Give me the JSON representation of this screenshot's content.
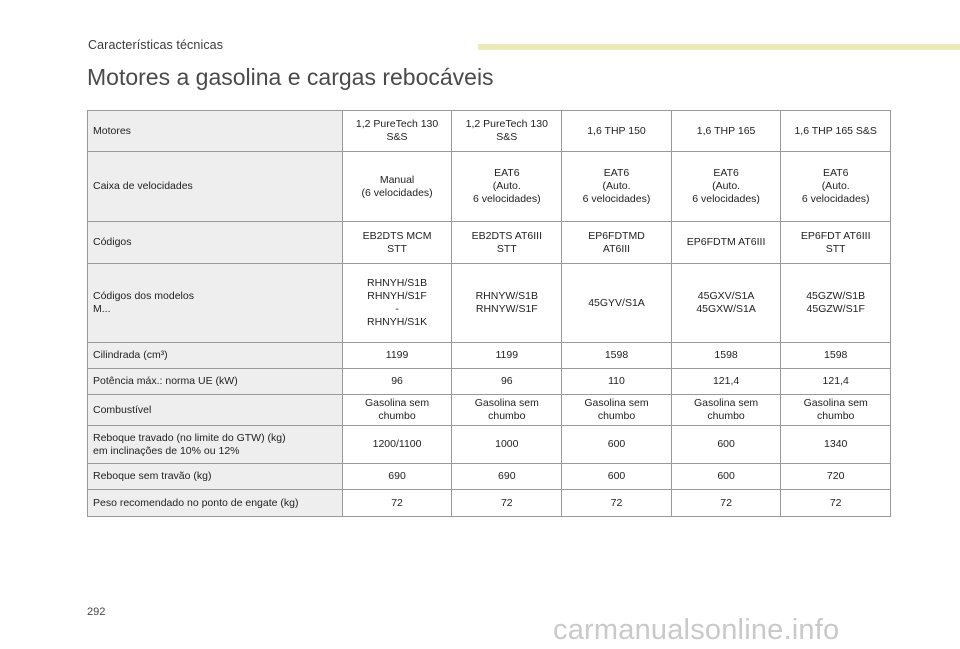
{
  "header": {
    "section_title": "Características técnicas",
    "accent_color": "#ecebb8"
  },
  "page_title": "Motores a gasolina e cargas rebocáveis",
  "table": {
    "rows": [
      {
        "label": "Motores",
        "values": [
          "1,2 PureTech 130\nS&S",
          "1,2 PureTech 130\nS&S",
          "1,6 THP 150",
          "1,6 THP 165",
          "1,6 THP 165 S&S"
        ]
      },
      {
        "label": "Caixa de velocidades",
        "values": [
          "Manual\n(6 velocidades)",
          "EAT6\n(Auto.\n6 velocidades)",
          "EAT6\n(Auto.\n6 velocidades)",
          "EAT6\n(Auto.\n6 velocidades)",
          "EAT6\n(Auto.\n6 velocidades)"
        ]
      },
      {
        "label": "Códigos",
        "values": [
          "EB2DTS MCM\nSTT",
          "EB2DTS AT6III\nSTT",
          "EP6FDTMD\nAT6III",
          "EP6FDTM AT6III",
          "EP6FDT AT6III\nSTT"
        ]
      },
      {
        "label": "Códigos dos modelos\nM...",
        "values": [
          "RHNYH/S1B\nRHNYH/S1F\n-\nRHNYH/S1K",
          "RHNYW/S1B\nRHNYW/S1F",
          "45GYV/S1A",
          "45GXV/S1A\n45GXW/S1A",
          "45GZW/S1B\n45GZW/S1F"
        ]
      },
      {
        "label": "Cilindrada (cm³)",
        "values": [
          "1199",
          "1199",
          "1598",
          "1598",
          "1598"
        ]
      },
      {
        "label": "Potência máx.: norma UE (kW)",
        "values": [
          "96",
          "96",
          "110",
          "121,4",
          "121,4"
        ]
      },
      {
        "label": "Combustível",
        "values": [
          "Gasolina sem\nchumbo",
          "Gasolina sem\nchumbo",
          "Gasolina sem\nchumbo",
          "Gasolina sem\nchumbo",
          "Gasolina sem\nchumbo"
        ]
      },
      {
        "label": "Reboque travado (no limite do GTW) (kg)\nem inclinações de 10% ou 12%",
        "values": [
          "1200/1100",
          "1000",
          "600",
          "600",
          "1340"
        ]
      },
      {
        "label": "Reboque sem travão (kg)",
        "values": [
          "690",
          "690",
          "600",
          "600",
          "720"
        ]
      },
      {
        "label": "Peso recomendado no ponto de engate (kg)",
        "values": [
          "72",
          "72",
          "72",
          "72",
          "72"
        ]
      }
    ]
  },
  "footer": {
    "page_number": "292",
    "watermark": "carmanualsonline.info"
  }
}
